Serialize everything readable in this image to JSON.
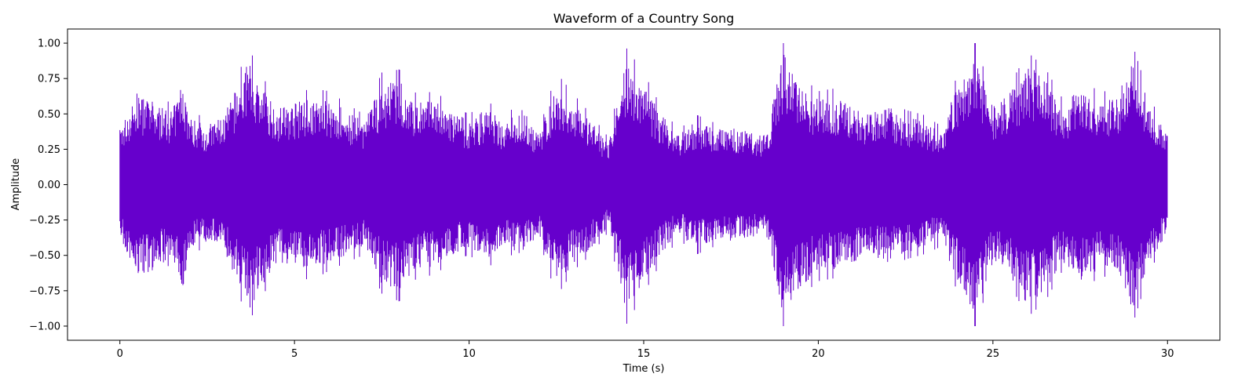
{
  "chart_data": {
    "type": "line",
    "title": "Waveform of a Country Song",
    "xlabel": "Time (s)",
    "ylabel": "Amplitude",
    "xlim": [
      -1.5,
      31.5
    ],
    "ylim": [
      -1.1,
      1.1
    ],
    "xticks": [
      0,
      5,
      10,
      15,
      20,
      25,
      30
    ],
    "xtick_labels": [
      "0",
      "5",
      "10",
      "15",
      "20",
      "25",
      "30"
    ],
    "yticks": [
      1.0,
      0.75,
      0.5,
      0.25,
      0.0,
      -0.25,
      -0.5,
      -0.75,
      -1.0
    ],
    "ytick_labels": [
      "1.00",
      "0.75",
      "0.50",
      "0.25",
      "0.00",
      "−0.25",
      "−0.50",
      "−0.75",
      "−1.00"
    ],
    "grid": false,
    "line_color": "#6600cc",
    "series": [
      {
        "x": [
          0.0,
          0.5,
          1.0,
          1.5,
          1.8,
          2.0,
          2.5,
          3.0,
          3.7,
          4.0,
          4.5,
          5.0,
          5.5,
          6.0,
          6.5,
          7.0,
          7.5,
          8.0,
          8.5,
          9.0,
          9.5,
          10.0,
          10.5,
          11.0,
          11.5,
          12.0,
          12.5,
          13.0,
          13.5,
          14.0,
          14.5,
          15.0,
          15.5,
          16.0,
          16.5,
          17.0,
          17.5,
          18.0,
          18.5,
          19.0,
          19.5,
          20.0,
          20.5,
          21.0,
          21.5,
          22.0,
          22.5,
          23.0,
          23.5,
          24.0,
          24.5,
          25.0,
          25.5,
          26.0,
          26.5,
          27.0,
          27.5,
          28.0,
          28.5,
          29.0,
          29.5,
          30.0
        ],
        "envelope_max": [
          0.4,
          0.65,
          0.58,
          0.52,
          0.75,
          0.48,
          0.42,
          0.5,
          0.88,
          0.72,
          0.55,
          0.58,
          0.62,
          0.6,
          0.52,
          0.45,
          0.72,
          0.74,
          0.58,
          0.6,
          0.52,
          0.45,
          0.55,
          0.43,
          0.55,
          0.35,
          0.72,
          0.58,
          0.45,
          0.3,
          0.88,
          0.72,
          0.5,
          0.35,
          0.45,
          0.4,
          0.4,
          0.38,
          0.35,
          0.93,
          0.7,
          0.6,
          0.62,
          0.55,
          0.5,
          0.55,
          0.48,
          0.45,
          0.38,
          0.72,
          0.92,
          0.55,
          0.65,
          0.85,
          0.75,
          0.55,
          0.7,
          0.6,
          0.6,
          0.9,
          0.55,
          0.35
        ],
        "envelope_min": [
          -0.38,
          -0.65,
          -0.6,
          -0.5,
          -0.75,
          -0.45,
          -0.4,
          -0.48,
          -0.88,
          -0.75,
          -0.55,
          -0.58,
          -0.62,
          -0.55,
          -0.5,
          -0.45,
          -0.7,
          -0.75,
          -0.6,
          -0.58,
          -0.5,
          -0.45,
          -0.55,
          -0.42,
          -0.5,
          -0.35,
          -0.72,
          -0.55,
          -0.45,
          -0.3,
          -0.9,
          -0.7,
          -0.5,
          -0.35,
          -0.45,
          -0.4,
          -0.4,
          -0.38,
          -0.35,
          -0.93,
          -0.72,
          -0.62,
          -0.6,
          -0.55,
          -0.5,
          -0.55,
          -0.48,
          -0.45,
          -0.4,
          -0.7,
          -0.92,
          -0.55,
          -0.65,
          -0.85,
          -0.75,
          -0.55,
          -0.7,
          -0.6,
          -0.58,
          -0.9,
          -0.55,
          -0.35
        ]
      }
    ]
  }
}
